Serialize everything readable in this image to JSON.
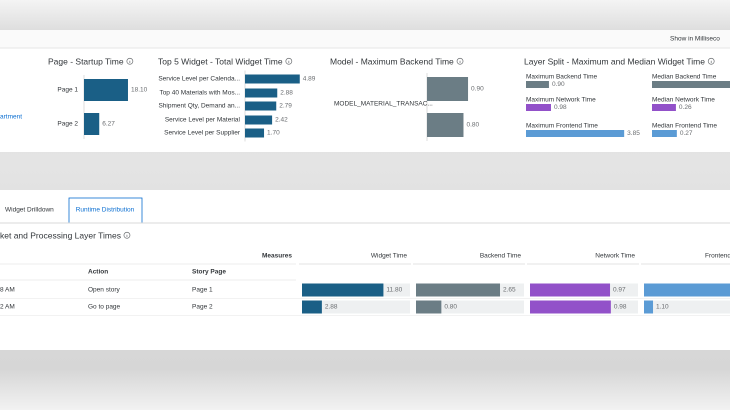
{
  "toolbar": {
    "toggle": "Show in Milliseco"
  },
  "left_fragment": "artment",
  "panels": [
    {
      "title": "Page - Startup Time",
      "bars": [
        {
          "label": "Page 1",
          "value": 18.1,
          "value_label": "18.10"
        },
        {
          "label": "Page 2",
          "value": 6.27,
          "value_label": "6.27"
        }
      ]
    },
    {
      "title": "Top 5 Widget - Total Widget Time",
      "bars": [
        {
          "label": "Service Level per Calenda...",
          "value": 4.89,
          "value_label": "4.89"
        },
        {
          "label": "Top 40 Materials with Mos...",
          "value": 2.88,
          "value_label": "2.88"
        },
        {
          "label": "Shipment Qty, Demand an...",
          "value": 2.79,
          "value_label": "2.79"
        },
        {
          "label": "Service Level per Material",
          "value": 2.42,
          "value_label": "2.42"
        },
        {
          "label": "Service Level per Supplier",
          "value": 1.7,
          "value_label": "1.70"
        }
      ]
    },
    {
      "title": "Model - Maximum Backend Time",
      "bars": [
        {
          "label": "MODEL_MATERIAL_TRANSAC...",
          "value": 0.9,
          "value_label": "0.90"
        },
        {
          "label": null,
          "value": 0.8,
          "value_label": "0.80"
        }
      ]
    }
  ],
  "layer_split": {
    "title": "Layer Split - Maximum and Median Widget Time",
    "maximum": [
      {
        "label": "Maximum Backend Time",
        "value": 0.9,
        "value_label": "0.90"
      },
      {
        "label": "Maximum Network Time",
        "value": 0.98,
        "value_label": "0.98"
      },
      {
        "label": "Maximum Frontend Time",
        "value": 3.85,
        "value_label": "3.85"
      }
    ],
    "median": [
      {
        "label": "Median Backend Time",
        "value": null
      },
      {
        "label": "Median Network Time",
        "value": 0.26,
        "value_label": "0.26"
      },
      {
        "label": "Median Frontend Time",
        "value": 0.27,
        "value_label": "0.27"
      }
    ]
  },
  "tabs": [
    "Widget Drilldown",
    "Runtime Distribution"
  ],
  "table": {
    "title": "ket and Processing Layer Times",
    "measures_label": "Measures",
    "columns": [
      "Widget Time",
      "Backend Time",
      "Network Time",
      "Frontend"
    ],
    "dim_headers": [
      "Action",
      "Story Page"
    ],
    "rows": [
      {
        "time": "8 AM",
        "action": "Open story",
        "page": "Page 1",
        "values": [
          11.8,
          2.65,
          0.97,
          null
        ],
        "value_labels": [
          "11.80",
          "2.65",
          "0.97",
          null
        ]
      },
      {
        "time": "2 AM",
        "action": "Go to page",
        "page": "Page 2",
        "values": [
          2.88,
          0.8,
          0.98,
          1.1
        ],
        "value_labels": [
          "2.88",
          "0.80",
          "0.98",
          "1.10"
        ]
      }
    ]
  }
}
